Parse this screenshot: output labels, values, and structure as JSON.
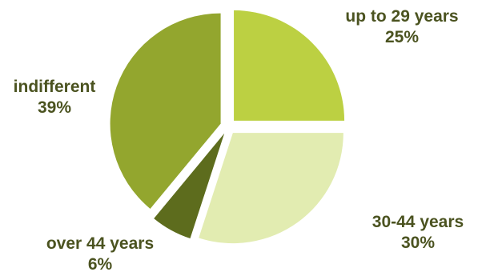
{
  "chart_data": {
    "type": "pie",
    "title": "",
    "slices": [
      {
        "label": "up to 29 years",
        "value": 25,
        "value_label": "25%",
        "color": "#bcd042"
      },
      {
        "label": "30-44 years",
        "value": 30,
        "value_label": "30%",
        "color": "#e2ecb1"
      },
      {
        "label": "over 44 years",
        "value": 6,
        "value_label": "6%",
        "color": "#5d6c1d"
      },
      {
        "label": "indifferent",
        "value": 39,
        "value_label": "39%",
        "color": "#93a62e"
      }
    ],
    "legend": "none",
    "exploded": true,
    "start_angle": "12 o'clock",
    "direction": "clockwise"
  }
}
